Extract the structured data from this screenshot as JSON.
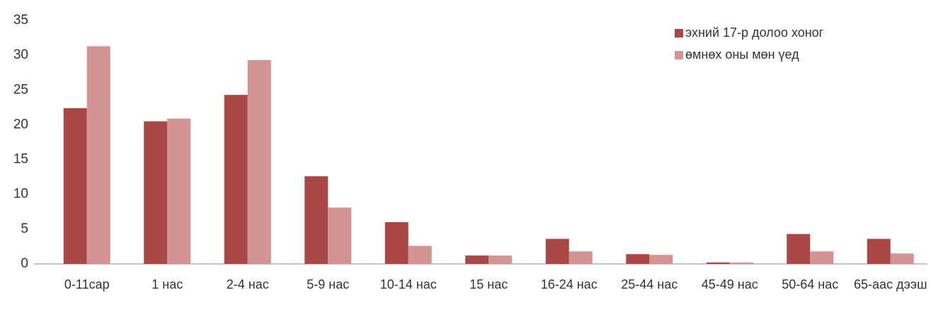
{
  "chart_data": {
    "type": "bar",
    "categories": [
      "0-11сар",
      "1 нас",
      "2-4 нас",
      "5-9 нас",
      "10-14 нас",
      "15 нас",
      "16-24 нас",
      "25-44 нас",
      "45-49 нас",
      "50-64 нас",
      "65-аас дээш"
    ],
    "series": [
      {
        "name": "эхний 17-р долоо хоног",
        "color": "#a94646",
        "values": [
          22.4,
          20.5,
          24.3,
          12.6,
          6.0,
          1.2,
          3.6,
          1.4,
          0.2,
          4.3,
          3.6
        ]
      },
      {
        "name": "өмнөх оны мөн үед",
        "color": "#d59494",
        "values": [
          31.3,
          20.9,
          29.3,
          8.1,
          2.6,
          1.2,
          1.8,
          1.3,
          0.2,
          1.8,
          1.5
        ]
      }
    ],
    "ylim": [
      0,
      35
    ],
    "yticks": [
      0,
      5,
      10,
      15,
      20,
      25,
      30,
      35
    ],
    "grid": false,
    "legend": "top-right"
  }
}
